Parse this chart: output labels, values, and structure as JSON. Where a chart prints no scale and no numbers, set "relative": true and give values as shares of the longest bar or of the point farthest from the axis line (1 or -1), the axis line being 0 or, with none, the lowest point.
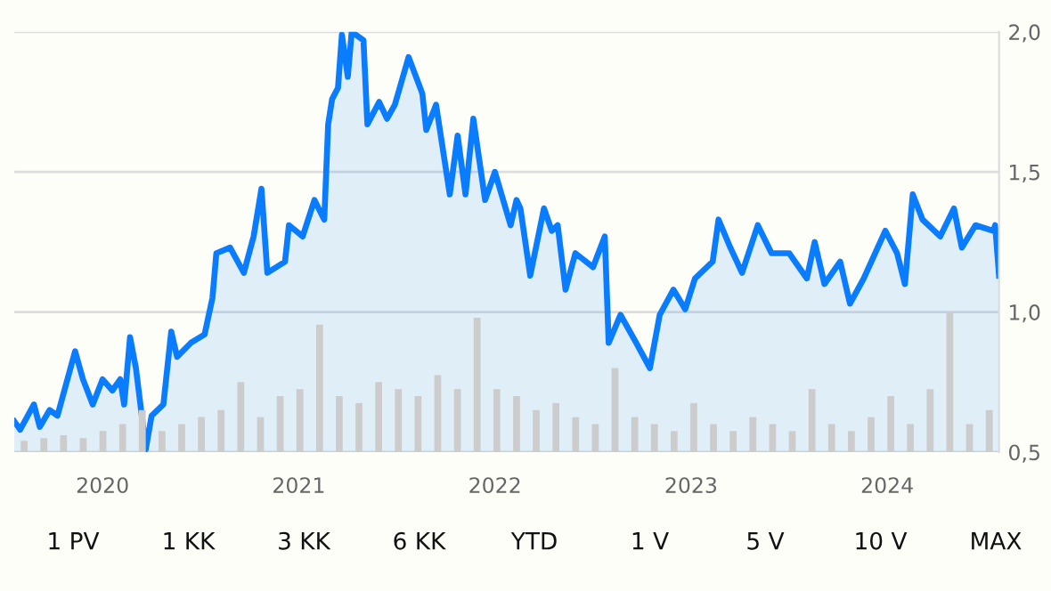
{
  "chart_data": [
    {
      "type": "area",
      "color": "#0a7cff",
      "x": [
        2019.55,
        2019.58,
        2019.65,
        2019.68,
        2019.73,
        2019.77,
        2019.86,
        2019.9,
        2019.95,
        2020.0,
        2020.05,
        2020.09,
        2020.11,
        2020.14,
        2020.17,
        2020.2,
        2020.22,
        2020.25,
        2020.31,
        2020.35,
        2020.38,
        2020.45,
        2020.52,
        2020.56,
        2020.58,
        2020.65,
        2020.72,
        2020.77,
        2020.81,
        2020.84,
        2020.93,
        2020.95,
        2021.02,
        2021.08,
        2021.13,
        2021.15,
        2021.17,
        2021.2,
        2021.22,
        2021.25,
        2021.27,
        2021.33,
        2021.35,
        2021.41,
        2021.45,
        2021.49,
        2021.56,
        2021.63,
        2021.65,
        2021.7,
        2021.77,
        2021.81,
        2021.85,
        2021.89,
        2021.95,
        2022.0,
        2022.08,
        2022.11,
        2022.13,
        2022.18,
        2022.25,
        2022.29,
        2022.32,
        2022.36,
        2022.41,
        2022.5,
        2022.56,
        2022.58,
        2022.64,
        2022.72,
        2022.79,
        2022.84,
        2022.91,
        2022.97,
        2023.02,
        2023.11,
        2023.14,
        2023.2,
        2023.26,
        2023.34,
        2023.41,
        2023.5,
        2023.59,
        2023.63,
        2023.68,
        2023.76,
        2023.81,
        2023.88,
        2023.99,
        2024.05,
        2024.09,
        2024.13,
        2024.18,
        2024.27,
        2024.34,
        2024.38,
        2024.45,
        2024.54,
        2024.55,
        2024.57
      ],
      "values": [
        0.61,
        0.58,
        0.67,
        0.59,
        0.65,
        0.63,
        0.86,
        0.76,
        0.67,
        0.76,
        0.72,
        0.76,
        0.67,
        0.91,
        0.8,
        0.63,
        0.51,
        0.63,
        0.67,
        0.93,
        0.84,
        0.89,
        0.92,
        1.05,
        1.21,
        1.23,
        1.14,
        1.27,
        1.44,
        1.14,
        1.18,
        1.31,
        1.27,
        1.4,
        1.33,
        1.67,
        1.76,
        1.8,
        1.99,
        1.84,
        2.0,
        1.97,
        1.67,
        1.75,
        1.69,
        1.74,
        1.91,
        1.78,
        1.65,
        1.74,
        1.42,
        1.63,
        1.42,
        1.69,
        1.4,
        1.5,
        1.31,
        1.4,
        1.37,
        1.13,
        1.37,
        1.29,
        1.31,
        1.08,
        1.21,
        1.16,
        1.27,
        0.89,
        0.99,
        0.89,
        0.8,
        0.99,
        1.08,
        1.01,
        1.12,
        1.18,
        1.33,
        1.23,
        1.14,
        1.31,
        1.21,
        1.21,
        1.12,
        1.25,
        1.1,
        1.18,
        1.03,
        1.12,
        1.29,
        1.21,
        1.1,
        1.42,
        1.33,
        1.27,
        1.37,
        1.23,
        1.31,
        1.29,
        1.31,
        1.13
      ],
      "xlim": [
        2019.55,
        2024.57
      ],
      "ylim": [
        0.5,
        2.0
      ],
      "xticks": [
        2020,
        2021,
        2022,
        2023,
        2024
      ],
      "yticks": [
        {
          "value": 0.5,
          "label": "0,5"
        },
        {
          "value": 1.0,
          "label": "1,0"
        },
        {
          "value": 1.5,
          "label": "1,5"
        },
        {
          "value": 2.0,
          "label": "2,0"
        }
      ],
      "grid": "y",
      "annotations": [
        "1 PV",
        "1 KK",
        "3 KK",
        "6 KK",
        "YTD",
        "1 V",
        "5 V",
        "10 V",
        "MAX"
      ]
    },
    {
      "type": "bar",
      "relative": true,
      "color": "#cccccc",
      "tick_labels": false,
      "categories": [
        null,
        null,
        null,
        null,
        null,
        null,
        null,
        null,
        null,
        null,
        null,
        null,
        null,
        null,
        null,
        null,
        null,
        null,
        null,
        null,
        null,
        null,
        null,
        null,
        null,
        null,
        null,
        null,
        null,
        null,
        null,
        null,
        null,
        null,
        null,
        null,
        null,
        null,
        null,
        null,
        null,
        null,
        null,
        null,
        null,
        null,
        null,
        null,
        null,
        null
      ],
      "values": [
        0.08,
        0.1,
        0.12,
        0.1,
        0.15,
        0.2,
        0.3,
        0.15,
        0.2,
        0.25,
        0.3,
        0.5,
        0.25,
        0.4,
        0.45,
        0.91,
        0.4,
        0.35,
        0.5,
        0.45,
        0.4,
        0.55,
        0.45,
        0.96,
        0.45,
        0.4,
        0.3,
        0.35,
        0.25,
        0.2,
        0.6,
        0.25,
        0.2,
        0.15,
        0.35,
        0.2,
        0.15,
        0.25,
        0.2,
        0.15,
        0.45,
        0.2,
        0.15,
        0.25,
        0.4,
        0.2,
        0.45,
        1.0,
        0.2,
        0.3
      ]
    }
  ]
}
